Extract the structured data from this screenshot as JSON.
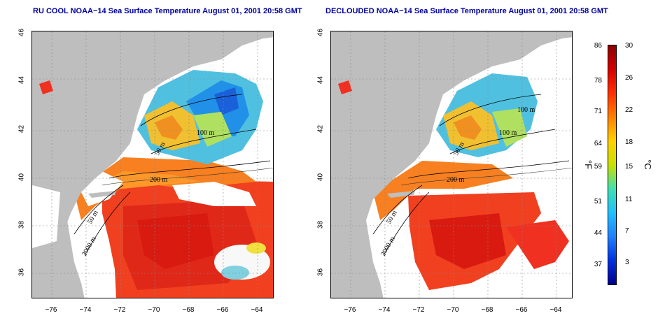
{
  "left_title": "RU COOL NOAA−14 Sea Surface Temperature August 01, 2001 20:58 GMT",
  "right_title": "DECLOUDED NOAA−14 Sea Surface Temperature August 01, 2001 20:58 GMT",
  "y_ticks": [
    "46",
    "44",
    "42",
    "40",
    "38",
    "36"
  ],
  "x_ticks": [
    "−76",
    "−74",
    "−72",
    "−70",
    "−68",
    "−66",
    "−64"
  ],
  "contour_labels": {
    "c100": "100 m",
    "c50": "50 m",
    "c200": "200 m",
    "c2000": "2000 m"
  },
  "colorbar": {
    "fahrenheit_ticks": [
      "86",
      "78",
      "71",
      "64",
      "59",
      "51",
      "44",
      "37"
    ],
    "celsius_ticks": [
      "30",
      "26",
      "22",
      "18",
      "15",
      "11",
      "7",
      "3"
    ],
    "unit_f": "°F",
    "unit_c": "°C",
    "colors": [
      "#8b0000",
      "#d40000",
      "#ff3000",
      "#ff8000",
      "#ffd000",
      "#c8e000",
      "#40e0b0",
      "#20c0ff",
      "#2080ff",
      "#0030e0",
      "#00008b"
    ]
  },
  "colors": {
    "land": "#bebebe",
    "cloud": "#ffffff",
    "title": "#0000a0"
  }
}
